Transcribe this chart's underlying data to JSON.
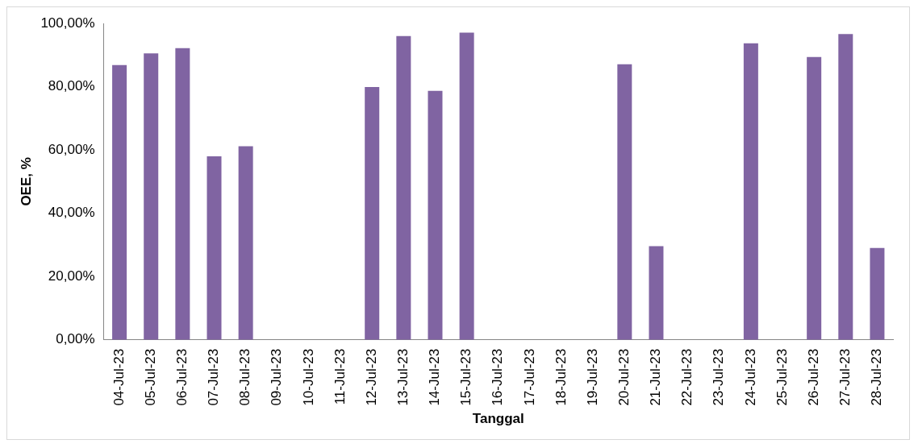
{
  "chart_data": {
    "type": "bar",
    "xlabel": "Tanggal",
    "ylabel": "OEE, %",
    "categories": [
      "04-Jul-23",
      "05-Jul-23",
      "06-Jul-23",
      "07-Jul-23",
      "08-Jul-23",
      "09-Jul-23",
      "10-Jul-23",
      "11-Jul-23",
      "12-Jul-23",
      "13-Jul-23",
      "14-Jul-23",
      "15-Jul-23",
      "16-Jul-23",
      "17-Jul-23",
      "18-Jul-23",
      "19-Jul-23",
      "20-Jul-23",
      "21-Jul-23",
      "22-Jul-23",
      "23-Jul-23",
      "24-Jul-23",
      "25-Jul-23",
      "26-Jul-23",
      "27-Jul-23",
      "28-Jul-23"
    ],
    "series": [
      {
        "color": "#8064a2",
        "values": [
          86.8,
          90.5,
          92.2,
          58,
          61.2,
          0,
          0,
          0,
          79.9,
          96,
          78.7,
          97.1,
          0,
          0,
          0,
          0,
          87.1,
          29.6,
          0,
          0,
          93.7,
          0,
          89.4,
          96.6,
          29
        ]
      }
    ],
    "ylim": [
      0,
      100
    ],
    "yticks": [
      {
        "value": 0,
        "label": "0,00%"
      },
      {
        "value": 20,
        "label": "20,00%"
      },
      {
        "value": 40,
        "label": "40,00%"
      },
      {
        "value": 60,
        "label": "60,00%"
      },
      {
        "value": 80,
        "label": "80,00%"
      },
      {
        "value": 100,
        "label": "100,00%"
      }
    ],
    "grid": false,
    "legend": false
  }
}
